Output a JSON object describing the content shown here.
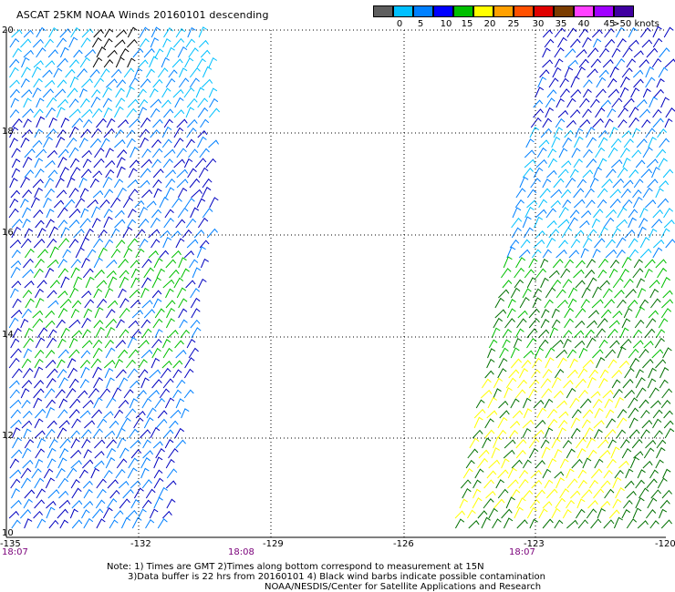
{
  "title": "ASCAT 25KM NOAA Winds 20160101 descending",
  "colorbar": {
    "labels": [
      "0",
      "5",
      "10",
      "15",
      "20",
      "25",
      "30",
      "35",
      "40",
      "45",
      ">50 knots"
    ],
    "colors": [
      "#5e5e5e",
      "#00c0ff",
      "#0080ff",
      "#0000ff",
      "#00c000",
      "#ffff00",
      "#ffa000",
      "#ff5000",
      "#e00000",
      "#7a3c00",
      "#ff40ff",
      "#a000ff",
      "#4000a0"
    ]
  },
  "axes": {
    "lat_labels": [
      "20",
      "18",
      "16",
      "14",
      "12",
      "10"
    ],
    "lon_labels": [
      "-135",
      "-132",
      "-129",
      "-126",
      "-123",
      "-120"
    ]
  },
  "times": [
    "18:07",
    "18:08",
    "18:07"
  ],
  "notes": {
    "line1": "Note: 1) Times are GMT  2)Times along bottom correspond to measurement at 15N",
    "line2": "3)Data buffer is 22 hrs from 20160101  4) Black wind barbs indicate possible contamination",
    "line3": "NOAA/NESDIS/Center for Satellite Applications and Research"
  },
  "wind_colors": {
    "light_blue": "#00c0ff",
    "mid_blue": "#0080ff",
    "dark_blue": "#0000c0",
    "green": "#00c000",
    "dark_green": "#007000",
    "yellow": "#ffff00",
    "black": "#000000"
  }
}
